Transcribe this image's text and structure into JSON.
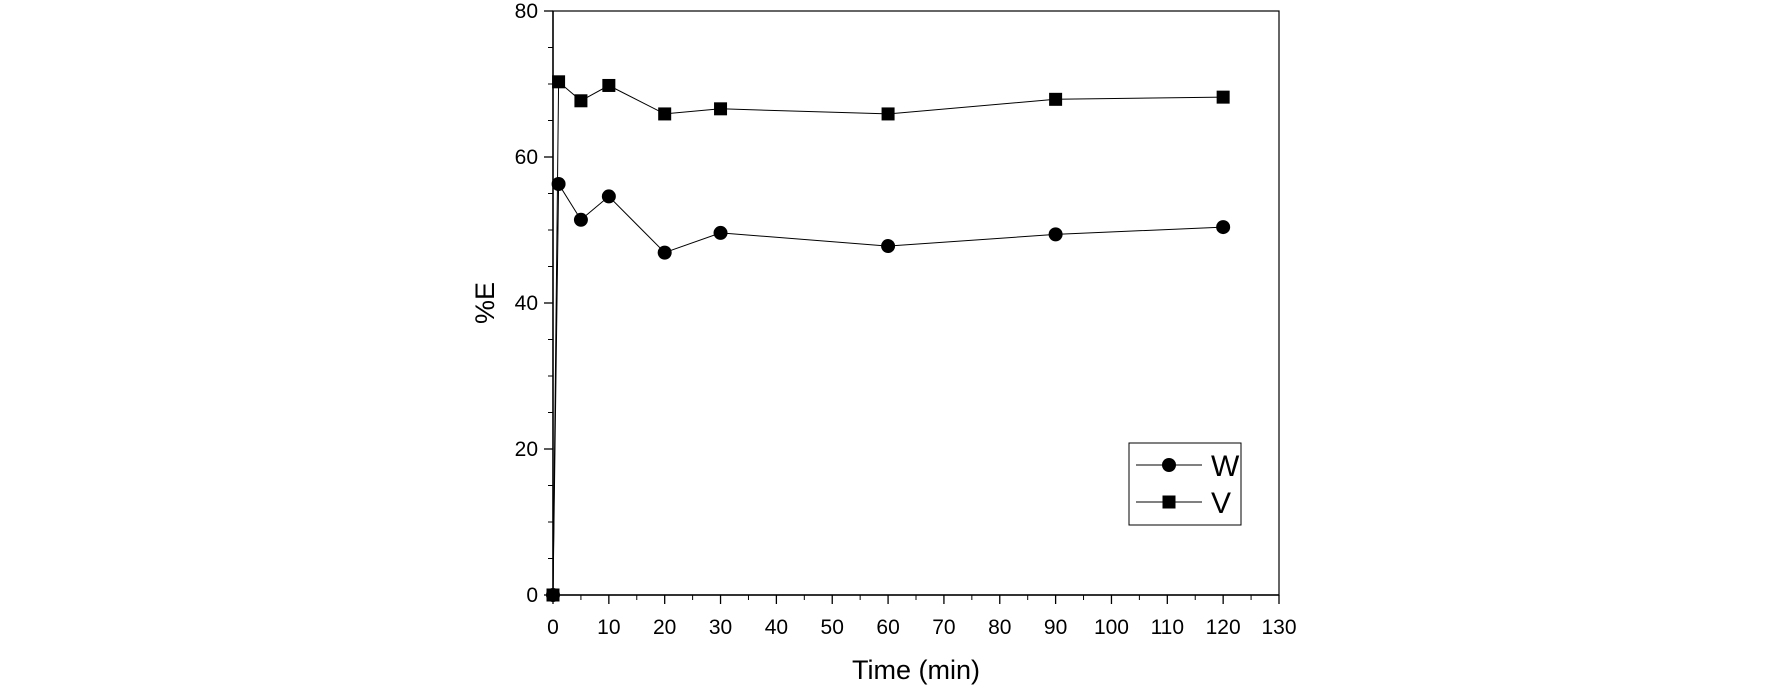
{
  "chart_data": {
    "type": "line",
    "title": "",
    "xlabel": "Time (min)",
    "ylabel": "%E",
    "xlim": [
      0,
      130
    ],
    "ylim": [
      0,
      80
    ],
    "x_ticks": [
      "0",
      "10",
      "20",
      "30",
      "40",
      "50",
      "60",
      "70",
      "80",
      "90",
      "100",
      "110",
      "120",
      "130"
    ],
    "y_ticks": [
      "0",
      "20",
      "40",
      "60",
      "80"
    ],
    "grid": false,
    "legend_position": "bottom-right",
    "series": [
      {
        "name": "W",
        "marker": "circle",
        "color": "#000000",
        "x": [
          0,
          1,
          5,
          10,
          20,
          30,
          60,
          90,
          120
        ],
        "y": [
          0,
          56.3,
          51.4,
          54.6,
          46.9,
          49.6,
          47.8,
          49.4,
          50.4
        ]
      },
      {
        "name": "V",
        "marker": "square",
        "color": "#000000",
        "x": [
          0,
          1,
          5,
          10,
          20,
          30,
          60,
          90,
          120
        ],
        "y": [
          0,
          70.3,
          67.7,
          69.8,
          65.9,
          66.6,
          65.9,
          67.9,
          68.2
        ]
      }
    ]
  }
}
